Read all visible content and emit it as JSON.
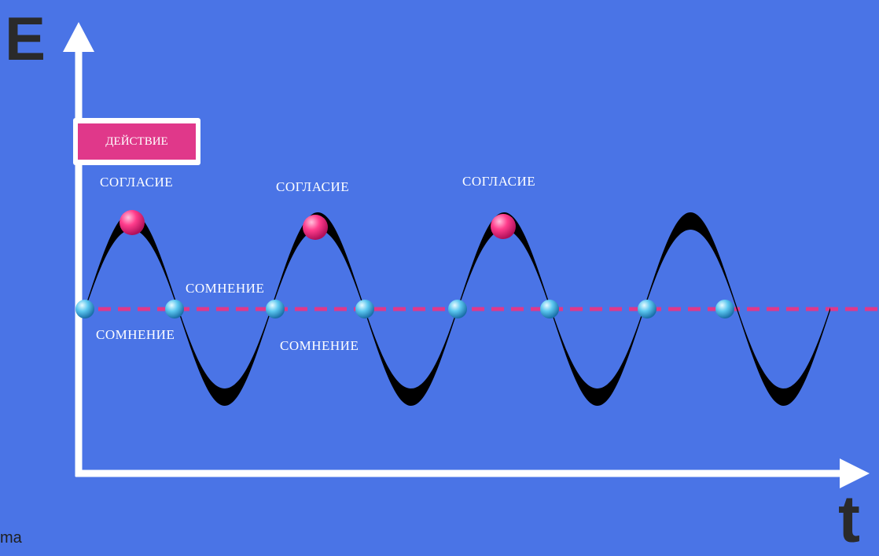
{
  "axes": {
    "y_label": "E",
    "x_label": "t"
  },
  "corner_text": "ma",
  "action_label": "ДЕЙСТВИЕ",
  "annotations": {
    "agreement": [
      "СОГЛАСИЕ",
      "СОГЛАСИЕ",
      "СОГЛАСИЕ"
    ],
    "doubt": [
      "СОМНЕНИЕ",
      "СОМНЕНИЕ",
      "СОМНЕНИЕ"
    ]
  },
  "colors": {
    "background": "#4a74e6",
    "axes": "#ffffff",
    "wave": "#000000",
    "baseline": "#e0388a",
    "peak_marker": "#ff3d8c",
    "crossing_marker": "#5cc8f0"
  }
}
